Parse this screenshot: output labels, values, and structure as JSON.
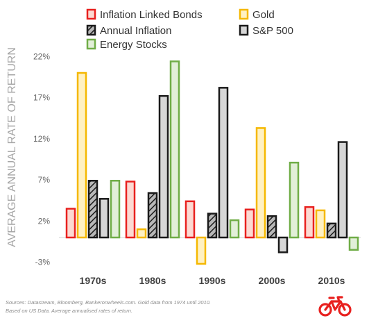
{
  "chart_data": {
    "type": "bar",
    "ylabel": "AVERAGE ANNUAL RATE OF RETURN",
    "xlabel": "",
    "categories": [
      "1970s",
      "1980s",
      "1990s",
      "2000s",
      "2010s"
    ],
    "ylim": [
      -4,
      23
    ],
    "yticks": [
      22,
      17,
      12,
      7,
      2,
      -3
    ],
    "ytick_labels": [
      "22%",
      "17%",
      "12%",
      "7%",
      "2%",
      "-3%"
    ],
    "legend_placement": "top",
    "grid": false,
    "series": [
      {
        "name": "Inflation Linked Bonds",
        "values": [
          3.5,
          6.8,
          4.4,
          3.4,
          3.7
        ],
        "color": "#e8201e",
        "fill": "#fcd9d2",
        "pattern": "solid"
      },
      {
        "name": "Gold",
        "values": [
          20,
          1,
          -3.2,
          13.3,
          3.3
        ],
        "color": "#f5b800",
        "fill": "#fff1c2",
        "pattern": "solid"
      },
      {
        "name": "Annual Inflation",
        "values": [
          6.9,
          5.4,
          2.9,
          2.6,
          1.7
        ],
        "color": "#1a1a1a",
        "fill": "#b8b8b8",
        "pattern": "hatch"
      },
      {
        "name": "S&P 500",
        "values": [
          4.7,
          17.2,
          18.2,
          -1.8,
          11.6
        ],
        "color": "#1a1a1a",
        "fill": "#d6d6d6",
        "pattern": "solid"
      },
      {
        "name": "Energy Stocks",
        "values": [
          6.9,
          21.4,
          2.1,
          9.1,
          -1.5
        ],
        "color": "#70ad47",
        "fill": "#e2efd8",
        "pattern": "solid"
      }
    ]
  },
  "footnote": {
    "line1": "Sources: Datastream, Bloomberg, Bankeronwheels.com. Gold data from 1974 until 2010.",
    "line2": "Based on US Data. Average annualised rates of return."
  },
  "logo": {
    "icon": "bicycle-icon",
    "color": "#e8201e"
  }
}
